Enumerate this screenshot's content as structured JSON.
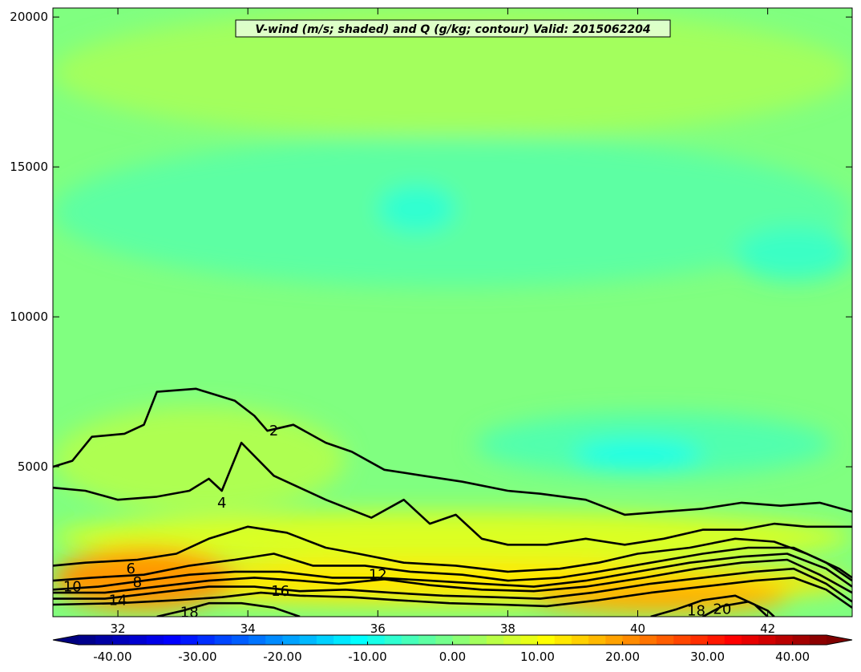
{
  "chart_data": {
    "type": "contour",
    "title": "V-wind (m/s; shaded) and Q (g/kg; contour) Valid: 2015062204",
    "xlabel": "",
    "ylabel": "",
    "xlim": [
      31,
      43.3
    ],
    "ylim": [
      0,
      20300
    ],
    "x_ticks": [
      {
        "value": 32,
        "label": "32"
      },
      {
        "value": 34,
        "label": "34"
      },
      {
        "value": 36,
        "label": "36"
      },
      {
        "value": 38,
        "label": "38"
      },
      {
        "value": 40,
        "label": "40"
      },
      {
        "value": 42,
        "label": "42"
      }
    ],
    "y_ticks": [
      {
        "value": 5000,
        "label": "5000"
      },
      {
        "value": 10000,
        "label": "10000"
      },
      {
        "value": 15000,
        "label": "15000"
      },
      {
        "value": 20000,
        "label": "20000"
      }
    ],
    "colorbar": {
      "min": -44,
      "max": 44,
      "levels": 44,
      "extend": "both",
      "ticks": [
        {
          "value": -40,
          "label": "-40.00"
        },
        {
          "value": -30,
          "label": "-30.00"
        },
        {
          "value": -20,
          "label": "-20.00"
        },
        {
          "value": -10,
          "label": "-10.00"
        },
        {
          "value": 0,
          "label": "0.00"
        },
        {
          "value": 10,
          "label": "10.00"
        },
        {
          "value": 20,
          "label": "20.00"
        },
        {
          "value": 30,
          "label": "30.00"
        },
        {
          "value": 40,
          "label": "40.00"
        }
      ]
    },
    "shaded_field": {
      "name": "V-wind",
      "units": "m/s",
      "regions": [
        {
          "value": 0,
          "x": [
            31,
            43.3
          ],
          "y": [
            0,
            20300
          ],
          "description": "background"
        },
        {
          "value": 3,
          "x": [
            31,
            43.3
          ],
          "y": [
            16000,
            20300
          ]
        },
        {
          "value": -3,
          "x": [
            31,
            43.3
          ],
          "y": [
            11000,
            16000
          ]
        },
        {
          "value": -7,
          "x": [
            36.0,
            37.2
          ],
          "y": [
            12800,
            14400
          ]
        },
        {
          "value": -6,
          "x": [
            41.5,
            43.3
          ],
          "y": [
            11200,
            13000
          ]
        },
        {
          "value": -4,
          "x": [
            37.5,
            43.0
          ],
          "y": [
            4700,
            6800
          ]
        },
        {
          "value": -9,
          "x": [
            39.0,
            41.0
          ],
          "y": [
            4900,
            5900
          ]
        },
        {
          "value": 4,
          "x": [
            31,
            35.5
          ],
          "y": [
            3500,
            7000
          ]
        },
        {
          "value": 8,
          "x": [
            31,
            43.3
          ],
          "y": [
            1800,
            3500
          ]
        },
        {
          "value": 13,
          "x": [
            31,
            43.3
          ],
          "y": [
            400,
            1900
          ]
        },
        {
          "value": 20,
          "x": [
            31,
            33.8
          ],
          "y": [
            200,
            2300
          ]
        },
        {
          "value": 18,
          "x": [
            38.3,
            42.3
          ],
          "y": [
            100,
            1200
          ]
        }
      ]
    },
    "contour_field": {
      "name": "Q",
      "units": "g/kg",
      "lines": [
        {
          "level": 2,
          "label": "2",
          "label_at": [
            34.4,
            6200
          ],
          "points": [
            [
              31,
              5000
            ],
            [
              31.3,
              5200
            ],
            [
              31.6,
              6000
            ],
            [
              32.1,
              6100
            ],
            [
              32.4,
              6400
            ],
            [
              32.6,
              7500
            ],
            [
              33.2,
              7600
            ],
            [
              33.8,
              7200
            ],
            [
              34.1,
              6700
            ],
            [
              34.3,
              6200
            ],
            [
              34.7,
              6400
            ],
            [
              35.2,
              5800
            ],
            [
              35.6,
              5500
            ],
            [
              36.1,
              4900
            ],
            [
              36.7,
              4700
            ],
            [
              37.3,
              4500
            ],
            [
              38.0,
              4200
            ],
            [
              38.5,
              4100
            ],
            [
              39.2,
              3900
            ],
            [
              39.8,
              3400
            ],
            [
              40.4,
              3500
            ],
            [
              41.0,
              3600
            ],
            [
              41.6,
              3800
            ],
            [
              42.2,
              3700
            ],
            [
              42.8,
              3800
            ],
            [
              43.3,
              3500
            ]
          ]
        },
        {
          "level": 4,
          "label": "4",
          "label_at": [
            33.6,
            3800
          ],
          "points": [
            [
              31,
              4300
            ],
            [
              31.5,
              4200
            ],
            [
              32.0,
              3900
            ],
            [
              32.6,
              4000
            ],
            [
              33.1,
              4200
            ],
            [
              33.4,
              4600
            ],
            [
              33.6,
              4200
            ],
            [
              33.9,
              5800
            ],
            [
              34.4,
              4700
            ],
            [
              35.2,
              3900
            ],
            [
              35.9,
              3300
            ],
            [
              36.4,
              3900
            ],
            [
              36.8,
              3100
            ],
            [
              37.2,
              3400
            ],
            [
              37.6,
              2600
            ],
            [
              38.0,
              2400
            ],
            [
              38.6,
              2400
            ],
            [
              39.2,
              2600
            ],
            [
              39.8,
              2400
            ],
            [
              40.4,
              2600
            ],
            [
              41.0,
              2900
            ],
            [
              41.6,
              2900
            ],
            [
              42.1,
              3100
            ],
            [
              42.6,
              3000
            ],
            [
              43.3,
              3000
            ]
          ]
        },
        {
          "level": 6,
          "label": "6",
          "label_at": [
            32.2,
            1600
          ],
          "points": [
            [
              31,
              1700
            ],
            [
              31.5,
              1800
            ],
            [
              32.3,
              1900
            ],
            [
              32.9,
              2100
            ],
            [
              33.4,
              2600
            ],
            [
              34.0,
              3000
            ],
            [
              34.6,
              2800
            ],
            [
              35.2,
              2300
            ],
            [
              35.7,
              2100
            ],
            [
              36.4,
              1800
            ],
            [
              37.2,
              1700
            ],
            [
              38.0,
              1500
            ],
            [
              38.8,
              1600
            ],
            [
              39.4,
              1800
            ],
            [
              40.0,
              2100
            ],
            [
              40.8,
              2300
            ],
            [
              41.5,
              2600
            ],
            [
              42.1,
              2500
            ],
            [
              42.6,
              2100
            ],
            [
              43.1,
              1600
            ],
            [
              43.3,
              1300
            ]
          ]
        },
        {
          "level": 8,
          "label": "8",
          "label_at": [
            32.3,
            1150
          ],
          "points": [
            [
              31,
              1200
            ],
            [
              31.6,
              1300
            ],
            [
              32.4,
              1400
            ],
            [
              33.1,
              1700
            ],
            [
              33.8,
              1900
            ],
            [
              34.4,
              2100
            ],
            [
              35.0,
              1700
            ],
            [
              35.8,
              1700
            ],
            [
              36.5,
              1500
            ],
            [
              37.3,
              1400
            ],
            [
              38.0,
              1200
            ],
            [
              38.8,
              1300
            ],
            [
              39.4,
              1500
            ],
            [
              40.2,
              1800
            ],
            [
              41.0,
              2100
            ],
            [
              41.7,
              2300
            ],
            [
              42.4,
              2300
            ],
            [
              42.9,
              1800
            ],
            [
              43.3,
              1200
            ]
          ]
        },
        {
          "level": 10,
          "label": "10",
          "label_at": [
            31.3,
            1000
          ],
          "points": [
            [
              31,
              900
            ],
            [
              31.7,
              1000
            ],
            [
              32.4,
              1200
            ],
            [
              33.1,
              1400
            ],
            [
              33.8,
              1500
            ],
            [
              34.5,
              1500
            ],
            [
              35.3,
              1300
            ],
            [
              36.0,
              1300
            ],
            [
              36.8,
              1200
            ],
            [
              37.6,
              1100
            ],
            [
              38.4,
              1000
            ],
            [
              39.2,
              1200
            ],
            [
              40.0,
              1500
            ],
            [
              40.8,
              1800
            ],
            [
              41.6,
              2000
            ],
            [
              42.3,
              2100
            ],
            [
              42.9,
              1600
            ],
            [
              43.3,
              1000
            ]
          ]
        },
        {
          "level": 12,
          "label": "12",
          "label_at": [
            36.0,
            1400
          ],
          "points": [
            [
              31,
              800
            ],
            [
              31.8,
              800
            ],
            [
              32.6,
              1000
            ],
            [
              33.4,
              1200
            ],
            [
              34.1,
              1300
            ],
            [
              34.8,
              1200
            ],
            [
              35.4,
              1100
            ],
            [
              36.1,
              1250
            ],
            [
              36.8,
              1050
            ],
            [
              37.6,
              900
            ],
            [
              38.4,
              850
            ],
            [
              39.2,
              1000
            ],
            [
              40.1,
              1300
            ],
            [
              40.9,
              1600
            ],
            [
              41.6,
              1800
            ],
            [
              42.3,
              1900
            ],
            [
              42.8,
              1400
            ],
            [
              43.3,
              800
            ]
          ]
        },
        {
          "level": 14,
          "label": "14",
          "label_at": [
            32.0,
            550
          ],
          "points": [
            [
              31,
              600
            ],
            [
              31.8,
              600
            ],
            [
              32.6,
              800
            ],
            [
              33.4,
              1000
            ],
            [
              34.1,
              1000
            ],
            [
              34.8,
              850
            ],
            [
              35.5,
              900
            ],
            [
              36.2,
              800
            ],
            [
              37.0,
              700
            ],
            [
              37.8,
              650
            ],
            [
              38.5,
              600
            ],
            [
              39.3,
              800
            ],
            [
              40.2,
              1100
            ],
            [
              41.0,
              1300
            ],
            [
              41.8,
              1500
            ],
            [
              42.4,
              1600
            ],
            [
              42.9,
              1100
            ],
            [
              43.3,
              500
            ]
          ]
        },
        {
          "level": 16,
          "label": "16",
          "label_at": [
            34.5,
            850
          ],
          "points": [
            [
              31,
              400
            ],
            [
              32.0,
              450
            ],
            [
              32.9,
              550
            ],
            [
              33.6,
              650
            ],
            [
              34.2,
              800
            ],
            [
              34.8,
              700
            ],
            [
              35.6,
              650
            ],
            [
              36.3,
              550
            ],
            [
              37.1,
              450
            ],
            [
              37.9,
              400
            ],
            [
              38.6,
              350
            ],
            [
              39.4,
              550
            ],
            [
              40.2,
              800
            ],
            [
              41.0,
              1000
            ],
            [
              41.8,
              1200
            ],
            [
              42.4,
              1300
            ],
            [
              42.9,
              900
            ],
            [
              43.3,
              300
            ]
          ]
        },
        {
          "level": 18,
          "label": "18",
          "label_at": [
            33.1,
            150
          ],
          "points": [
            [
              32.6,
              0
            ],
            [
              33.0,
              200
            ],
            [
              33.4,
              450
            ],
            [
              33.9,
              450
            ],
            [
              34.4,
              300
            ],
            [
              34.8,
              0
            ]
          ]
        },
        {
          "level": 18,
          "label": "18",
          "label_at": [
            40.9,
            200
          ],
          "points": [
            [
              40.2,
              0
            ],
            [
              40.6,
              250
            ],
            [
              41.0,
              550
            ],
            [
              41.5,
              700
            ],
            [
              41.8,
              400
            ],
            [
              42.0,
              0
            ]
          ]
        },
        {
          "level": 20,
          "label": "20",
          "label_at": [
            41.3,
            250
          ],
          "points": [
            [
              41.0,
              0
            ],
            [
              41.3,
              350
            ],
            [
              41.7,
              500
            ],
            [
              42.0,
              200
            ],
            [
              42.1,
              0
            ]
          ]
        }
      ]
    }
  }
}
